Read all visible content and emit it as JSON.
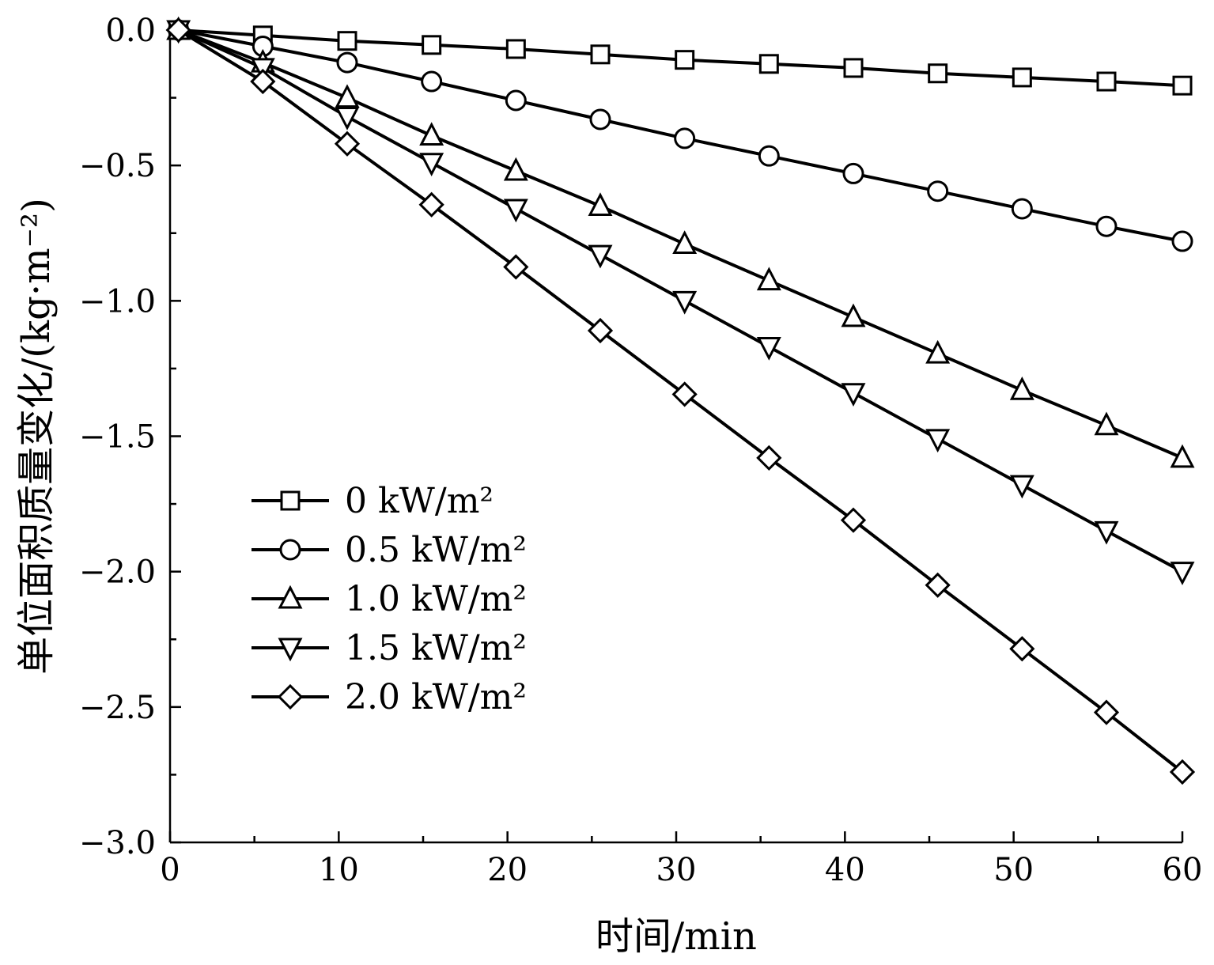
{
  "chart_data": {
    "type": "line",
    "xlabel": "时间/min",
    "ylabel": "单位面积质量变化/(kg·m⁻²)",
    "xlim": [
      0,
      60
    ],
    "ylim": [
      -3.0,
      0.0
    ],
    "xticks": [
      "0",
      "10",
      "20",
      "30",
      "40",
      "50",
      "60"
    ],
    "yticks": [
      "0.0",
      "−0.5",
      "−1.0",
      "−1.5",
      "−2.0",
      "−2.5",
      "−3.0"
    ],
    "xtick_values": [
      0,
      10,
      20,
      30,
      40,
      50,
      60
    ],
    "ytick_values": [
      0.0,
      -0.5,
      -1.0,
      -1.5,
      -2.0,
      -2.5,
      -3.0
    ],
    "grid": false,
    "legend_position": "lower-left",
    "x": [
      0.5,
      5.5,
      10.5,
      15.5,
      20.5,
      25.5,
      30.5,
      35.5,
      40.5,
      45.5,
      50.5,
      55.5,
      60
    ],
    "series": [
      {
        "name": "0 kW/m²",
        "marker": "square",
        "values": [
          0.0,
          -0.02,
          -0.04,
          -0.055,
          -0.07,
          -0.09,
          -0.11,
          -0.125,
          -0.14,
          -0.16,
          -0.175,
          -0.19,
          -0.205
        ]
      },
      {
        "name": "0.5 kW/m²",
        "marker": "circle",
        "values": [
          0.0,
          -0.06,
          -0.12,
          -0.19,
          -0.26,
          -0.33,
          -0.4,
          -0.465,
          -0.53,
          -0.595,
          -0.66,
          -0.725,
          -0.78
        ]
      },
      {
        "name": "1.0 kW/m²",
        "marker": "triangle-up",
        "values": [
          0.0,
          -0.12,
          -0.25,
          -0.39,
          -0.52,
          -0.65,
          -0.79,
          -0.925,
          -1.06,
          -1.195,
          -1.33,
          -1.46,
          -1.58
        ]
      },
      {
        "name": "1.5 kW/m²",
        "marker": "triangle-down",
        "values": [
          0.0,
          -0.14,
          -0.32,
          -0.49,
          -0.66,
          -0.83,
          -1.0,
          -1.17,
          -1.34,
          -1.51,
          -1.68,
          -1.85,
          -2.0
        ]
      },
      {
        "name": "2.0 kW/m²",
        "marker": "diamond",
        "values": [
          0.0,
          -0.19,
          -0.42,
          -0.645,
          -0.875,
          -1.11,
          -1.345,
          -1.58,
          -1.81,
          -2.05,
          -2.285,
          -2.52,
          -2.74
        ]
      }
    ]
  }
}
